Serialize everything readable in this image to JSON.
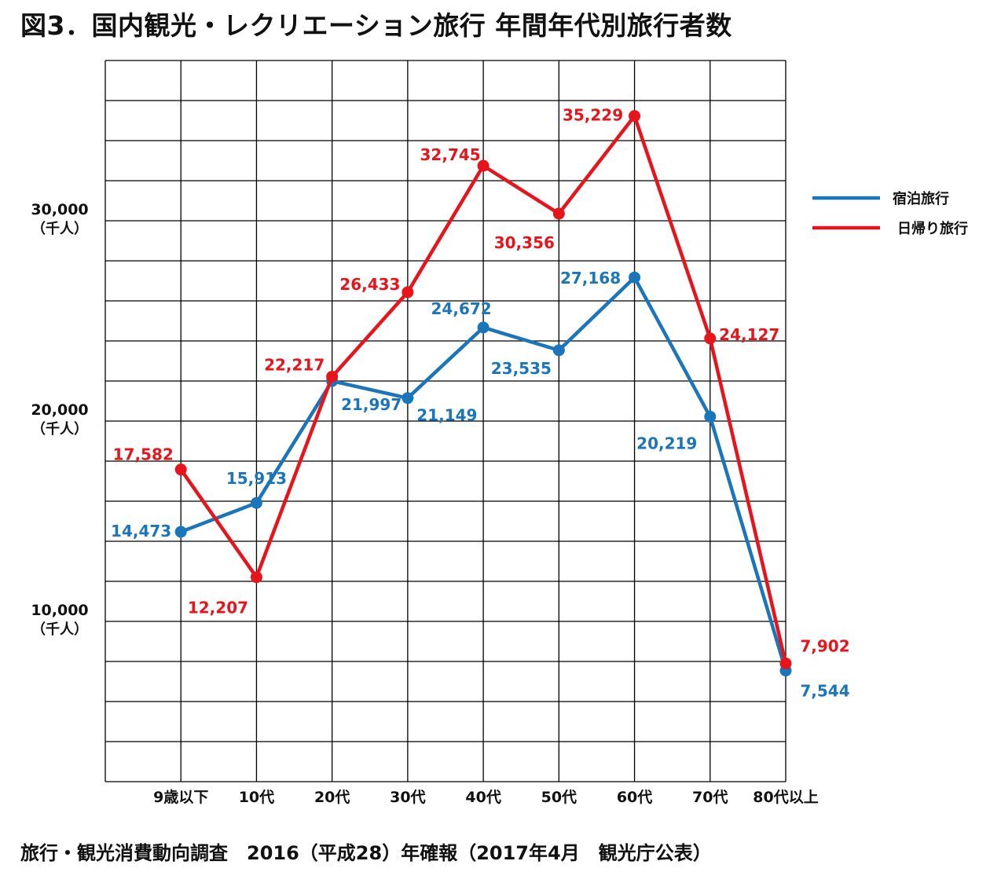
{
  "title": "図3．国内観光・レクリエーション旅行 年間年代別旅行者数",
  "source": "旅行・観光消費動向調査　2016（平成28）年確報（2017年4月　観光庁公表）",
  "colors": {
    "stay": "#1b75bb",
    "day": "#e8141b",
    "grid": "#000000"
  },
  "chart_data": {
    "type": "line",
    "title": "図3．国内観光・レクリエーション旅行 年間年代別旅行者数",
    "xlabel": "",
    "ylabel": "",
    "categories": [
      "9歳以下",
      "10代",
      "20代",
      "30代",
      "40代",
      "50代",
      "60代",
      "70代",
      "80代以上"
    ],
    "ylim": [
      2000,
      38000
    ],
    "y_ticks": [
      {
        "value": 30000,
        "label": "30,000",
        "unit": "（千人）"
      },
      {
        "value": 20000,
        "label": "20,000",
        "unit": "（千人）"
      },
      {
        "value": 10000,
        "label": "10,000",
        "unit": "（千人）"
      }
    ],
    "grid": true,
    "legend": "right",
    "series": [
      {
        "name": "宿泊旅行",
        "color": "#1b75bb",
        "values": [
          14473,
          15913,
          21997,
          21149,
          24672,
          23535,
          27168,
          20219,
          7544
        ],
        "labels": [
          "14,473",
          "15,913",
          "21,997",
          "21,149",
          "24,672",
          "23,535",
          "27,168",
          "20,219",
          "7,544"
        ]
      },
      {
        "name": "日帰り旅行",
        "color": "#e8141b",
        "values": [
          17582,
          12207,
          22217,
          26433,
          32745,
          30356,
          35229,
          24127,
          7902
        ],
        "labels": [
          "17,582",
          "12,207",
          "22,217",
          "26,433",
          "32,745",
          "30,356",
          "35,229",
          "24,127",
          "7,902"
        ]
      }
    ]
  }
}
